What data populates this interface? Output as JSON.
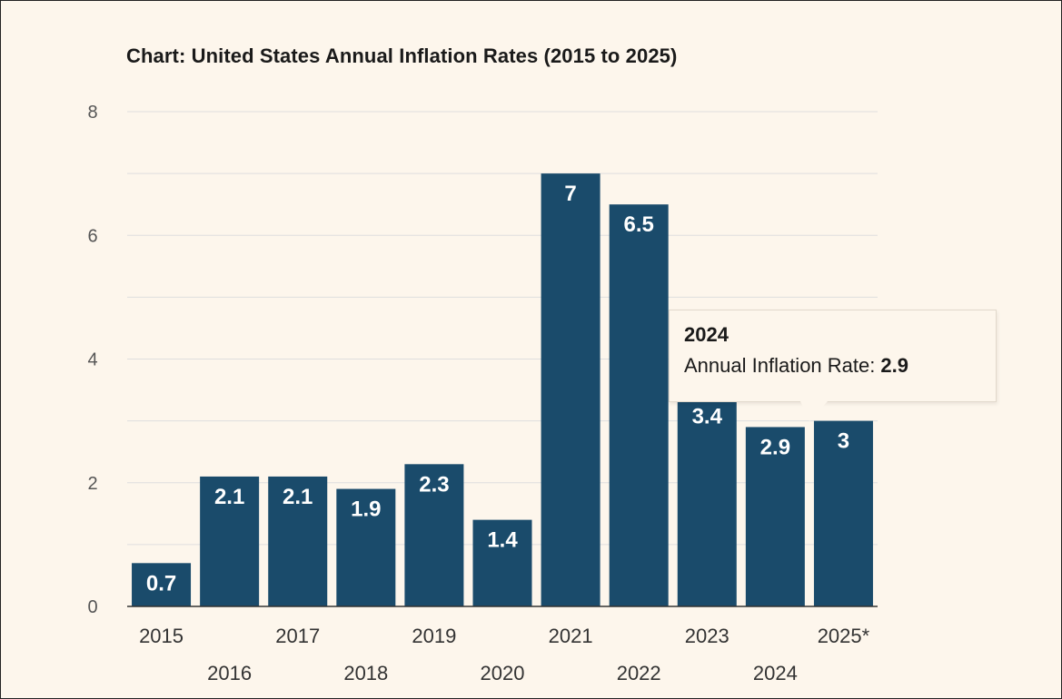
{
  "chart_data": {
    "type": "bar",
    "title": "Chart: United States Annual Inflation Rates (2015 to 2025)",
    "xlabel": "",
    "ylabel": "",
    "categories": [
      "2015",
      "2016",
      "2017",
      "2018",
      "2019",
      "2020",
      "2021",
      "2022",
      "2023",
      "2024",
      "2025*"
    ],
    "values": [
      0.7,
      2.1,
      2.1,
      1.9,
      2.3,
      1.4,
      7,
      6.5,
      3.4,
      2.9,
      3
    ],
    "value_labels": [
      "0.7",
      "2.1",
      "2.1",
      "1.9",
      "2.3",
      "1.4",
      "7",
      "6.5",
      "3.4",
      "2.9",
      "3"
    ],
    "ylim": [
      0,
      8
    ],
    "yticks": [
      "0",
      "2",
      "4",
      "6",
      "8"
    ],
    "grid": true,
    "bar_color": "#1a4b6b"
  },
  "tooltip": {
    "year": "2024",
    "label": "Annual Inflation Rate:",
    "value": "2.9"
  }
}
